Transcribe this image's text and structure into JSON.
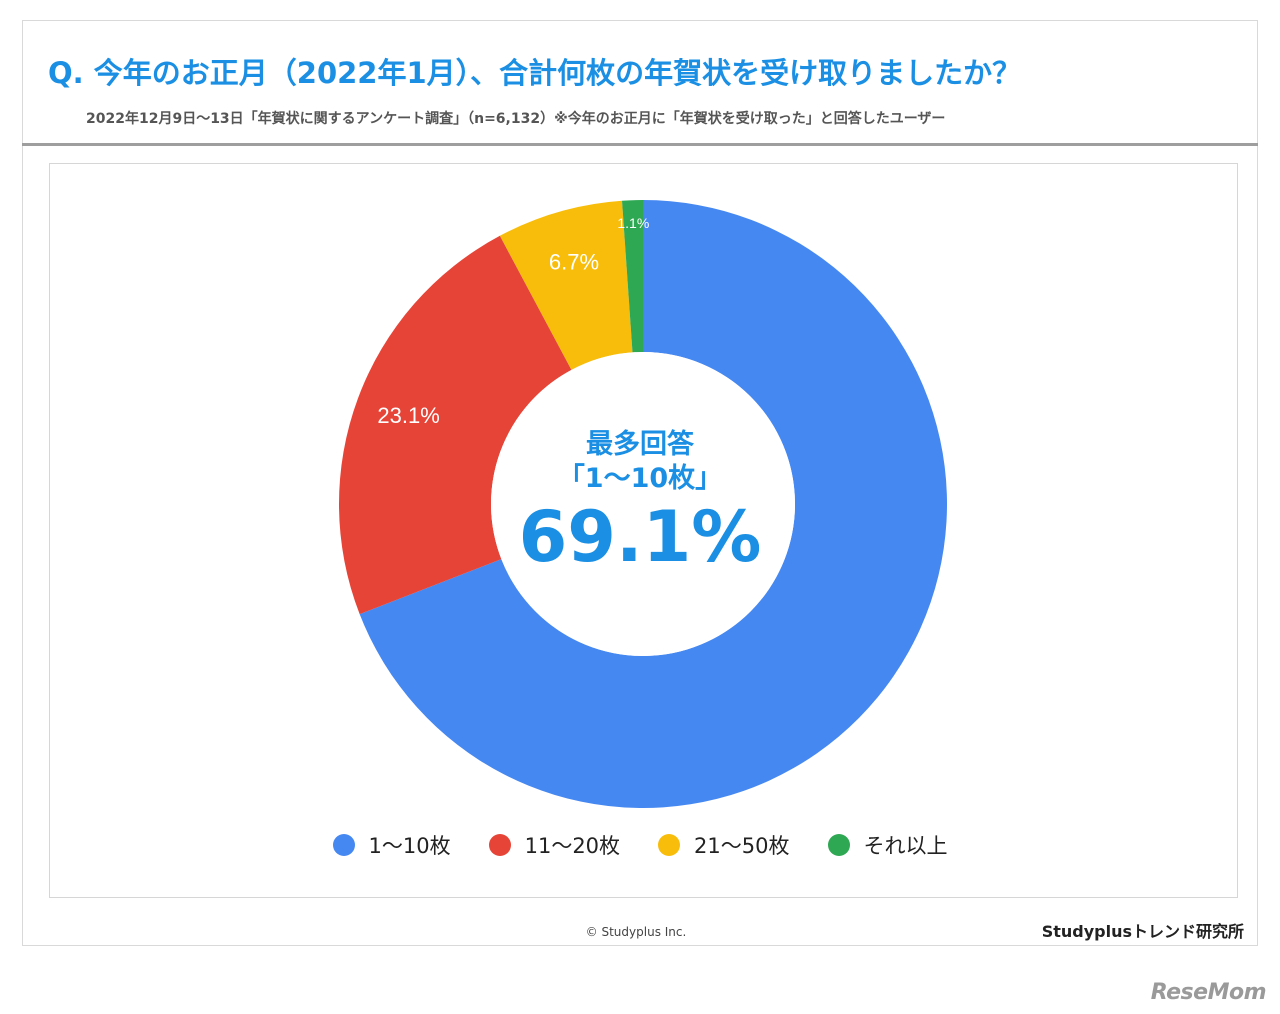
{
  "header": {
    "title": "Q. 今年のお正月（2022年1月）、合計何枚の年賀状を受け取りましたか？",
    "subtitle": "2022年12月9日〜13日「年賀状に関するアンケート調査」（n=6,132）※今年のお正月に「年賀状を受け取った」と回答したユーザー"
  },
  "chart_data": {
    "type": "pie",
    "donut": true,
    "categories": [
      "1〜10枚",
      "11〜20枚",
      "21〜50枚",
      "それ以上"
    ],
    "values": [
      69.1,
      23.1,
      6.7,
      1.1
    ],
    "value_labels": [
      "",
      "23.1%",
      "6.7%",
      "1.1%"
    ],
    "colors": [
      "#4688f1",
      "#e64436",
      "#f8bd0b",
      "#2fa853"
    ],
    "legend_position": "bottom",
    "center_annotation": {
      "line1": "最多回答",
      "line2": "「1〜10枚」",
      "value": "69.1%"
    }
  },
  "footer": {
    "copyright": "© Studyplus Inc.",
    "brand": "Studyplusトレンド研究所",
    "watermark": "ReseMom"
  }
}
